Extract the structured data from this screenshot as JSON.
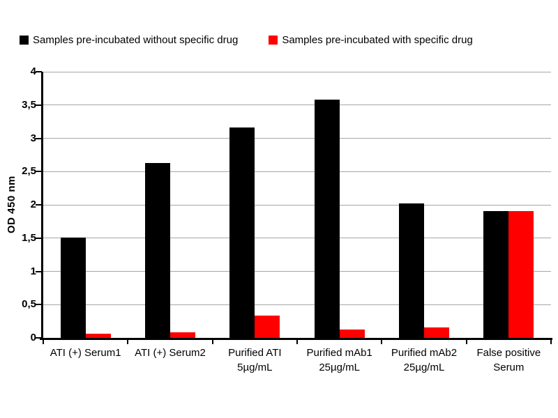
{
  "colors": {
    "background": "#ffffff",
    "axis": "#000000",
    "gridline": "#a6a6a6",
    "series_without_drug": "#000000",
    "series_with_drug": "#ff0000"
  },
  "chart_data": {
    "type": "bar",
    "title": "",
    "xlabel": "",
    "ylabel": "OD 450 nm",
    "ylim": [
      0,
      4
    ],
    "ytick_step": 0.5,
    "ytick_labels": [
      "0",
      "0,5",
      "1",
      "1,5",
      "2",
      "2,5",
      "3",
      "3,5",
      "4"
    ],
    "grid": true,
    "legend_position": "top",
    "categories": [
      "ATI (+) Serum1",
      "ATI (+) Serum2",
      "Purified ATI\n5µg/mL",
      "Purified mAb1\n25µg/mL",
      "Purified mAb2\n25µg/mL",
      "False positive\nSerum"
    ],
    "series": [
      {
        "name": "Samples pre-incubated without specific drug",
        "color": "#000000",
        "values": [
          1.51,
          2.63,
          3.16,
          3.58,
          2.02,
          1.91
        ]
      },
      {
        "name": "Samples pre-incubated with specific drug",
        "color": "#ff0000",
        "values": [
          0.06,
          0.08,
          0.34,
          0.13,
          0.16,
          1.91
        ]
      }
    ]
  }
}
